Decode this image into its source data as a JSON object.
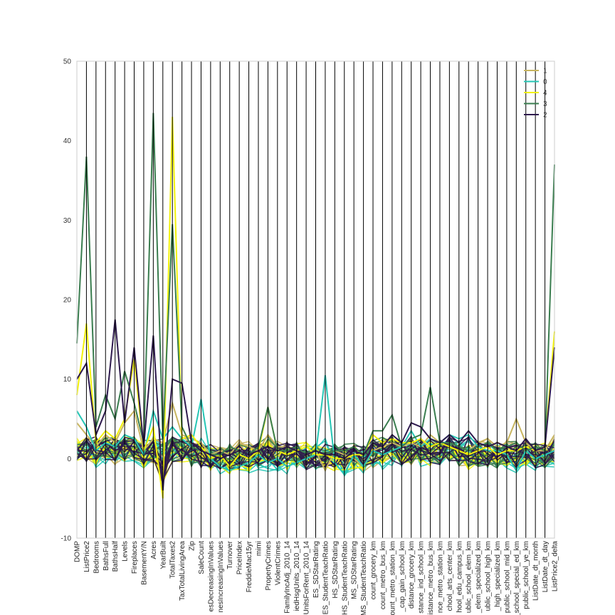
{
  "chart_data": {
    "type": "parallel-coordinates",
    "title": "",
    "xlabel": "",
    "ylabel": "",
    "ylim": [
      -10,
      50
    ],
    "yticks": [
      -10,
      0,
      10,
      20,
      30,
      40,
      50
    ],
    "grid": false,
    "legend_position": "top-right",
    "axes": [
      "DOMP",
      "ListPrice2",
      "Bedrooms",
      "BathsFull",
      "BathsHalf",
      "Levels",
      "Fireplaces",
      "BasementY/N",
      "Acres",
      "YearBuilt",
      "TotalTaxes2",
      "TaxTotalLivingArea",
      "Zip",
      "SaleCount",
      "esDecreasingInValues",
      "nesIncreasingInValues",
      "Turnover",
      "PriceIndex",
      "FreddieMac15yr",
      "mimi",
      "PropertyCrimes",
      "ViolentCrimes",
      "FamilyIncAdj_2010_14",
      "iedHsgUnits_2010_14",
      "UnitsForRent_2010_14",
      "ES_SDStarRating",
      "ES_StudentTeachRatio",
      "HS_SDStarRating",
      "HS_StudentTeachRatio",
      "MS_SDStarRating",
      "MS_StudentTeachRatio",
      "count_grocery_km",
      "count_metro_bus_km",
      "count_metro_station_km",
      "_cap_gain_school_km",
      "distance_grocery_km",
      "stance_ind_school_km",
      "istance_metro_bus_km",
      "nce_metro_station_km",
      "chool_arts_center_km",
      "hool_edu_campus_km",
      "ublic_school_elem_km",
      "_elem_specialized_km",
      "ublic_school_high_km",
      "_high_specialized_km",
      "public_school_mid_km",
      "public_school_special_ed_km",
      "public_school_ye_km",
      "ListDate_dt_month",
      "ListDate_dt_day",
      "ListPrice2_delta"
    ],
    "series": [
      {
        "name": "1",
        "color": "#c8b560",
        "values": [
          4.5,
          3.0,
          1.5,
          3.0,
          2.0,
          4.5,
          6.0,
          1.0,
          2.5,
          2.0,
          7.0,
          3.0,
          2.5,
          2.0,
          0.5,
          1.0,
          0.5,
          2.0,
          1.5,
          1.0,
          3.0,
          1.5,
          1.5,
          1.0,
          0.5,
          1.0,
          -1.5,
          1.0,
          0.5,
          0.0,
          -1.0,
          1.0,
          1.5,
          2.0,
          1.5,
          2.0,
          1.5,
          3.0,
          2.0,
          2.0,
          1.5,
          1.0,
          2.0,
          2.5,
          1.5,
          2.0,
          5.0,
          2.0,
          1.0,
          1.0,
          3.0
        ]
      },
      {
        "name": "0",
        "color": "#26c6b5",
        "values": [
          6.0,
          4.0,
          1.0,
          2.0,
          1.5,
          3.0,
          2.5,
          0.5,
          6.0,
          2.5,
          4.0,
          2.5,
          1.5,
          7.5,
          0.0,
          -1.0,
          -1.5,
          -1.0,
          -0.5,
          0.5,
          -0.5,
          0.0,
          -1.0,
          -0.5,
          0.0,
          0.5,
          10.5,
          -0.5,
          -2.0,
          0.5,
          -1.0,
          1.0,
          0.5,
          1.0,
          1.5,
          3.5,
          1.5,
          2.5,
          2.0,
          3.0,
          2.5,
          3.0,
          1.5,
          1.0,
          1.0,
          0.5,
          -1.5,
          1.0,
          0.0,
          0.5,
          1.0
        ]
      },
      {
        "name": "4",
        "color": "#f2f20a",
        "values": [
          8.0,
          17.0,
          2.0,
          3.5,
          2.5,
          5.0,
          12.5,
          1.0,
          4.0,
          -5.0,
          43.0,
          2.5,
          3.0,
          1.5,
          0.0,
          0.5,
          -1.0,
          0.5,
          0.0,
          1.0,
          6.5,
          1.0,
          0.5,
          1.0,
          1.5,
          0.5,
          0.5,
          0.0,
          0.0,
          0.5,
          0.5,
          3.0,
          2.0,
          2.5,
          2.0,
          2.0,
          2.5,
          1.5,
          2.0,
          1.5,
          1.0,
          0.5,
          1.0,
          1.5,
          0.5,
          1.0,
          1.0,
          1.5,
          1.0,
          1.5,
          16.0
        ]
      },
      {
        "name": "3",
        "color": "#3a7d4f",
        "values": [
          14.5,
          38.0,
          4.0,
          8.0,
          5.0,
          11.0,
          7.0,
          2.0,
          43.5,
          2.5,
          29.5,
          4.0,
          1.5,
          1.0,
          0.5,
          0.5,
          1.5,
          1.0,
          0.5,
          1.5,
          6.5,
          1.0,
          1.0,
          1.5,
          0.5,
          1.0,
          0.5,
          1.0,
          1.0,
          1.5,
          0.5,
          3.5,
          3.5,
          5.5,
          1.5,
          2.5,
          3.0,
          9.0,
          2.0,
          2.0,
          1.5,
          1.0,
          1.5,
          2.0,
          1.0,
          1.5,
          2.0,
          1.0,
          1.5,
          1.0,
          37.0
        ]
      },
      {
        "name": "2",
        "color": "#2e1a4d",
        "values": [
          10.0,
          12.0,
          3.0,
          6.0,
          17.5,
          4.5,
          14.0,
          1.5,
          15.5,
          -4.0,
          10.0,
          9.5,
          2.0,
          1.0,
          0.5,
          0.0,
          0.5,
          1.0,
          0.5,
          1.0,
          1.5,
          1.0,
          1.5,
          1.0,
          0.5,
          1.0,
          0.5,
          0.5,
          0.0,
          1.0,
          0.5,
          2.0,
          1.5,
          3.0,
          2.0,
          4.5,
          4.0,
          2.5,
          2.0,
          3.0,
          2.0,
          3.5,
          2.0,
          1.5,
          2.0,
          1.5,
          1.0,
          2.5,
          1.0,
          1.5,
          14.0
        ]
      }
    ]
  }
}
